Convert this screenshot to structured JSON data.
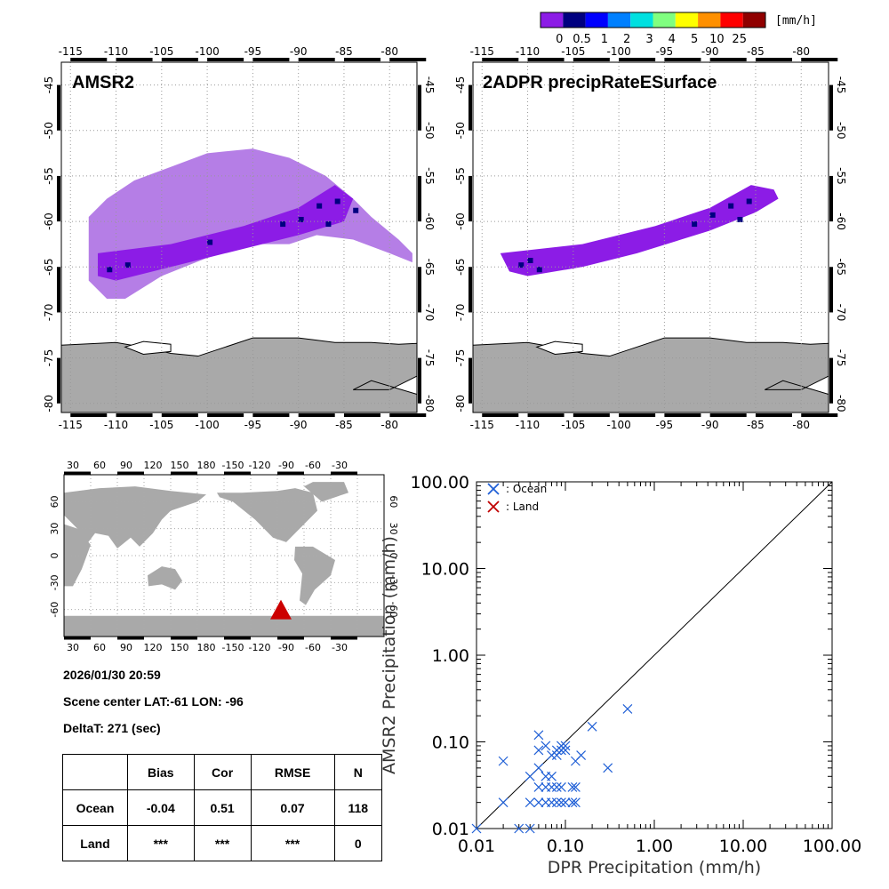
{
  "colorbar": {
    "unit": "[mm/h]",
    "labels": [
      "0",
      "0.5",
      "1",
      "2",
      "3",
      "4",
      "5",
      "10",
      "25"
    ],
    "colors": [
      "#8c1ce6",
      "#000080",
      "#0000ff",
      "#0080ff",
      "#00e0e0",
      "#80ff80",
      "#ffff00",
      "#ff9000",
      "#ff0000",
      "#900000"
    ]
  },
  "maps": {
    "amsr2_title": "AMSR2",
    "dpr_title": "2ADPR precipRateESurface",
    "lon_ticks": [
      "-115",
      "-110",
      "-105",
      "-100",
      "-95",
      "-90",
      "-85",
      "-80"
    ],
    "lat_ticks": [
      "-45",
      "-50",
      "-55",
      "-60",
      "-65",
      "-70",
      "-75",
      "-80"
    ],
    "land_color": "#a9a9a9",
    "light_rain_color": "#b57ee6",
    "med_rain_color": "#8c1ce6",
    "heavy_rain_color": "#000080"
  },
  "world_map": {
    "lon_ticks": [
      "30",
      "60",
      "90",
      "120",
      "150",
      "180",
      "-150",
      "-120",
      "-90",
      "-60",
      "-30"
    ],
    "lat_ticks_left": [
      "60",
      "30",
      "0",
      "-30",
      "-60"
    ],
    "lat_ticks_right": [
      "60",
      "30",
      "0",
      "-30",
      "-60"
    ],
    "marker_color": "#cc0000"
  },
  "info": {
    "datetime": "2026/01/30 20:59",
    "scene_center": "Scene center LAT:-61   LON: -96",
    "deltat": "DeltaT:  271 (sec)"
  },
  "stats_table": {
    "headers": [
      "",
      "Bias",
      "Cor",
      "RMSE",
      "N"
    ],
    "rows": [
      [
        "Ocean",
        "-0.04",
        "0.51",
        "0.07",
        "118"
      ],
      [
        "Land",
        "***",
        "***",
        "***",
        "0"
      ]
    ]
  },
  "chart_data": {
    "type": "scatter",
    "xlabel": "DPR Precipitation (mm/h)",
    "ylabel": "AMSR2 Precipitation (mm/h)",
    "xscale": "log",
    "yscale": "log",
    "xlim": [
      0.01,
      100
    ],
    "ylim": [
      0.01,
      100
    ],
    "x_tick_labels": [
      "0.01",
      "0.10",
      "1.00",
      "10.00",
      "100.00"
    ],
    "y_tick_labels": [
      "0.01",
      "0.10",
      "1.00",
      "10.00",
      "100.00"
    ],
    "legend_position": "top-left",
    "series": [
      {
        "name": ": Ocean",
        "color": "#1f5fd6",
        "points": [
          [
            0.01,
            0.01
          ],
          [
            0.02,
            0.06
          ],
          [
            0.02,
            0.02
          ],
          [
            0.03,
            0.01
          ],
          [
            0.04,
            0.01
          ],
          [
            0.04,
            0.02
          ],
          [
            0.04,
            0.04
          ],
          [
            0.05,
            0.12
          ],
          [
            0.05,
            0.08
          ],
          [
            0.05,
            0.05
          ],
          [
            0.05,
            0.03
          ],
          [
            0.05,
            0.02
          ],
          [
            0.06,
            0.09
          ],
          [
            0.06,
            0.04
          ],
          [
            0.06,
            0.03
          ],
          [
            0.06,
            0.02
          ],
          [
            0.07,
            0.07
          ],
          [
            0.07,
            0.04
          ],
          [
            0.07,
            0.03
          ],
          [
            0.07,
            0.02
          ],
          [
            0.08,
            0.08
          ],
          [
            0.08,
            0.07
          ],
          [
            0.08,
            0.03
          ],
          [
            0.08,
            0.02
          ],
          [
            0.09,
            0.09
          ],
          [
            0.09,
            0.08
          ],
          [
            0.09,
            0.03
          ],
          [
            0.09,
            0.02
          ],
          [
            0.1,
            0.09
          ],
          [
            0.1,
            0.08
          ],
          [
            0.1,
            0.02
          ],
          [
            0.12,
            0.03
          ],
          [
            0.12,
            0.02
          ],
          [
            0.13,
            0.06
          ],
          [
            0.13,
            0.03
          ],
          [
            0.13,
            0.02
          ],
          [
            0.15,
            0.07
          ],
          [
            0.2,
            0.15
          ],
          [
            0.3,
            0.05
          ],
          [
            0.5,
            0.24
          ]
        ]
      },
      {
        "name": ": Land",
        "color": "#c00000",
        "points": []
      }
    ]
  }
}
